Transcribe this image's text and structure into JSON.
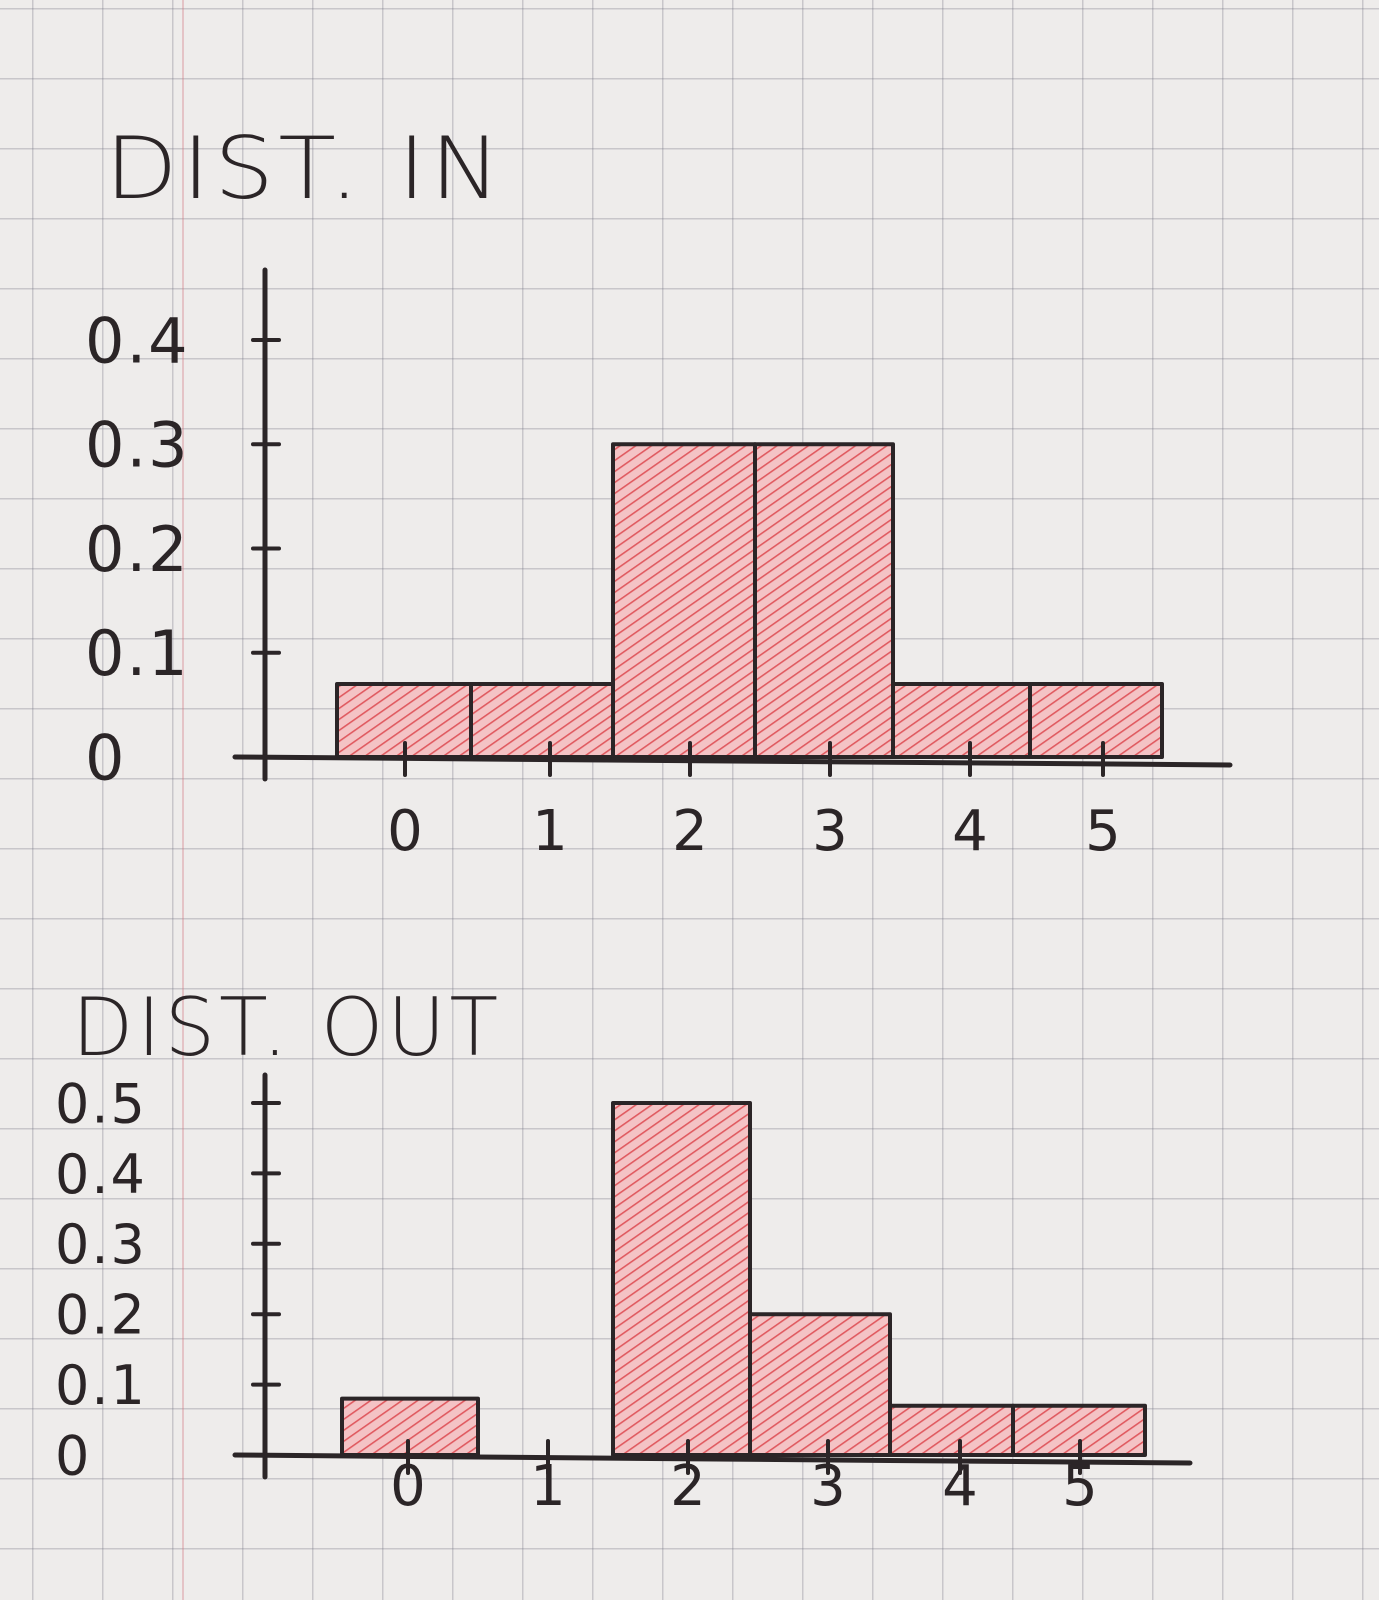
{
  "colors": {
    "ink": "#2b2527",
    "hatch": "#e05a60",
    "hatch_fill": "#f2b9bb"
  },
  "chart_data": [
    {
      "type": "bar",
      "title": "DIST. IN",
      "categories": [
        "0",
        "1",
        "2",
        "3",
        "4",
        "5"
      ],
      "values": [
        0.07,
        0.07,
        0.3,
        0.3,
        0.07,
        0.07
      ],
      "yticks": [
        "0",
        "0.1",
        "0.2",
        "0.3",
        "0.4"
      ],
      "ylim": [
        0,
        0.4
      ],
      "xlabel": "",
      "ylabel": ""
    },
    {
      "type": "bar",
      "title": "DIST. OUT",
      "categories": [
        "0",
        "1",
        "2",
        "3",
        "4",
        "5"
      ],
      "values": [
        0.08,
        0,
        0.5,
        0.2,
        0.07,
        0.07
      ],
      "yticks": [
        "0",
        "0.1",
        "0.2",
        "0.3",
        "0.4",
        "0.5"
      ],
      "ylim": [
        0,
        0.5
      ],
      "xlabel": "",
      "ylabel": ""
    }
  ]
}
